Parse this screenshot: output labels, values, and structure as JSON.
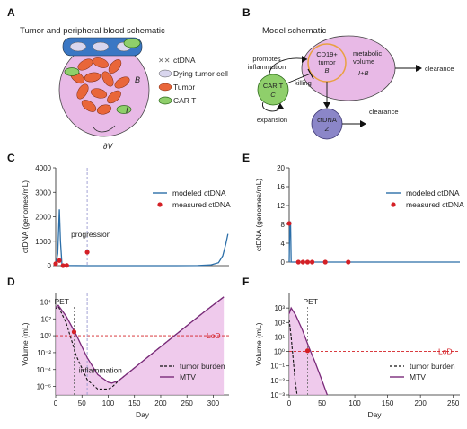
{
  "panels": {
    "A": {
      "letter": "A",
      "title": "Tumor and peripheral blood schematic",
      "legend": [
        "ctDNA",
        "Dying tumor cell",
        "Tumor",
        "CAR T"
      ],
      "labels": {
        "B": "B",
        "I": "I",
        "dV": "∂V"
      }
    },
    "B": {
      "letter": "B",
      "title": "Model schematic",
      "tumor_node": [
        "CD19+",
        "tumor",
        "B"
      ],
      "metabolic": [
        "metabolic",
        "volume",
        "I+B"
      ],
      "cart_node": [
        "CAR T",
        "C"
      ],
      "ctdna_node": [
        "ctDNA",
        "Z"
      ],
      "promotes": [
        "promotes",
        "inflammation"
      ],
      "killing": "killing",
      "expansion": "expansion",
      "clearance1": "clearance",
      "clearance2": "clearance"
    },
    "C": {
      "letter": "C",
      "annotation": "progression"
    },
    "D": {
      "letter": "D",
      "pet": "PET",
      "inflammation": "inflammation",
      "lod": "LoD"
    },
    "E": {
      "letter": "E"
    },
    "F": {
      "letter": "F",
      "pet": "PET",
      "lod": "LoD"
    }
  },
  "colors": {
    "modeled": "#2b6ea8",
    "measured": "#d42026",
    "mtv": "#7a2a7a",
    "mtv_fill": "#e9b8e6",
    "lod": "#d42026",
    "tumor_fill": "#e8b9e6",
    "cart": "#8fcf6b",
    "ctdna_node": "#8b86c8",
    "tumor_cell": "#e9663a",
    "vessel": "#3a77c4"
  },
  "chart_data": [
    {
      "id": "C",
      "type": "line",
      "xlabel": "",
      "ylabel": "ctDNA (genomes/mL)",
      "xlim": [
        0,
        330
      ],
      "ylim": [
        0,
        4000
      ],
      "yticks": [
        "0",
        "1000",
        "2000",
        "3000",
        "4000"
      ],
      "legend": [
        "modeled ctDNA",
        "measured ctDNA"
      ],
      "series": [
        {
          "name": "modeled ctDNA",
          "x": [
            0,
            4,
            7,
            9,
            12,
            20,
            60,
            120,
            180,
            230,
            270,
            295,
            310,
            318,
            324,
            328
          ],
          "y": [
            0,
            500,
            2300,
            1000,
            40,
            8,
            0,
            0,
            0,
            0,
            5,
            30,
            120,
            400,
            900,
            1300
          ]
        },
        {
          "name": "measured ctDNA",
          "x": [
            0,
            7,
            14,
            21,
            60
          ],
          "y": [
            80,
            210,
            0,
            10,
            550
          ]
        }
      ],
      "vline": 60
    },
    {
      "id": "D",
      "type": "line",
      "xlabel": "Day",
      "ylabel": "Volume (mL)",
      "xlim": [
        0,
        330
      ],
      "ylim_log10": [
        -7,
        5
      ],
      "xticks": [
        "0",
        "50",
        "100",
        "150",
        "200",
        "250",
        "300"
      ],
      "yticks": [
        "10⁴",
        "10²",
        "10⁰",
        "10⁻²",
        "10⁻⁴",
        "10⁻⁶"
      ],
      "legend": [
        "tumor burden",
        "MTV"
      ],
      "series": [
        {
          "name": "tumor burden",
          "x": [
            0,
            5,
            20,
            40,
            60,
            80,
            100,
            107,
            120,
            140,
            170,
            200,
            240,
            280,
            320
          ],
          "log10_y": [
            3.2,
            3.5,
            1.5,
            -2.5,
            -5.2,
            -6.3,
            -6.3,
            -6.1,
            -5.3,
            -4.3,
            -2.8,
            -1.3,
            0.7,
            2.7,
            4.6
          ]
        },
        {
          "name": "MTV",
          "x": [
            0,
            5,
            20,
            40,
            60,
            80,
            100,
            107,
            120,
            140,
            170,
            200,
            240,
            280,
            320
          ],
          "log10_y": [
            3.3,
            3.6,
            2.3,
            0,
            -2.6,
            -4.6,
            -5.5,
            -5.6,
            -5.3,
            -4.3,
            -2.8,
            -1.3,
            0.7,
            2.7,
            4.6
          ]
        }
      ],
      "lod_log10": 0,
      "pet_day": 35,
      "vline": 60
    },
    {
      "id": "E",
      "type": "line",
      "xlabel": "",
      "ylabel": "ctDNA (genomes/mL)",
      "xlim": [
        0,
        260
      ],
      "ylim": [
        0,
        20
      ],
      "yticks": [
        "0",
        "4",
        "8",
        "12",
        "16",
        "20"
      ],
      "legend": [
        "modeled ctDNA",
        "measured ctDNA"
      ],
      "series": [
        {
          "name": "modeled ctDNA",
          "x": [
            0,
            1,
            2,
            3,
            10,
            260
          ],
          "y": [
            0,
            8.5,
            8.5,
            0,
            0,
            0
          ]
        },
        {
          "name": "measured ctDNA",
          "x": [
            0,
            14,
            21,
            28,
            35,
            55,
            90
          ],
          "y": [
            8.2,
            0,
            0,
            0,
            0,
            0,
            0
          ]
        }
      ]
    },
    {
      "id": "F",
      "type": "line",
      "xlabel": "Day",
      "ylabel": "Volume (mL)",
      "xlim": [
        0,
        260
      ],
      "ylim_log10": [
        -3,
        4
      ],
      "xticks": [
        "0",
        "50",
        "100",
        "150",
        "200",
        "250"
      ],
      "yticks": [
        "10³",
        "10²",
        "10¹",
        "10⁰",
        "10⁻¹",
        "10⁻²",
        "10⁻³"
      ],
      "legend": [
        "tumor burden",
        "MTV"
      ],
      "series": [
        {
          "name": "tumor burden",
          "x": [
            0,
            3,
            6,
            9,
            12
          ],
          "log10_y": [
            2.2,
            1.0,
            -0.5,
            -2.0,
            -3.0
          ]
        },
        {
          "name": "MTV",
          "x": [
            0,
            3,
            10,
            20,
            30,
            40,
            50,
            58
          ],
          "log10_y": [
            2.6,
            3.0,
            2.5,
            1.5,
            0.3,
            -0.8,
            -2.0,
            -3.0
          ]
        }
      ],
      "lod_log10": 0,
      "pet_day": 28
    }
  ]
}
